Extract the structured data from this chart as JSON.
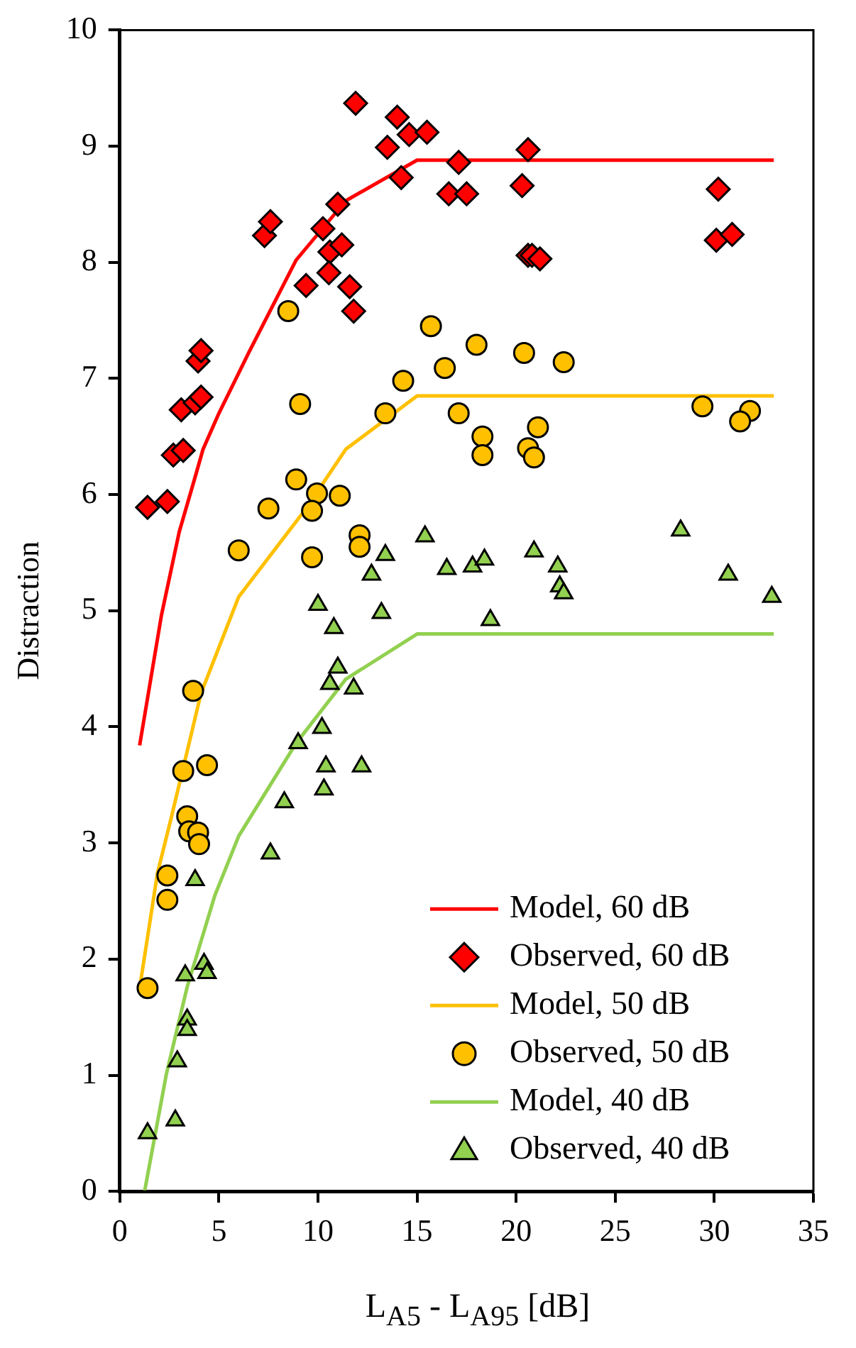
{
  "chart_data": {
    "type": "scatter",
    "xlabel": "L$_{A5}$ - L$_{A95}$ [dB]",
    "ylabel": "Distraction",
    "xlim": [
      0,
      35
    ],
    "ylim": [
      0,
      10
    ],
    "xticks": [
      0,
      5,
      10,
      15,
      20,
      25,
      30,
      35
    ],
    "yticks": [
      0,
      1,
      2,
      3,
      4,
      5,
      6,
      7,
      8,
      9,
      10
    ],
    "legend": "bottom right",
    "series": [
      {
        "type": "line",
        "name": "Model, 60 dB",
        "color": "#ff0000",
        "marker": "none",
        "x": [
          1.0,
          2.1,
          3.0,
          3.8,
          4.2,
          5.0,
          6.5,
          8.9,
          11.4,
          15.0,
          33.0
        ],
        "values": [
          3.84,
          4.96,
          5.68,
          6.15,
          6.39,
          6.7,
          7.22,
          8.02,
          8.53,
          8.88,
          8.88
        ]
      },
      {
        "type": "scatter",
        "name": "Observed, 60 dB",
        "color": "#ff0000",
        "marker": "diamond",
        "x": [
          1.4,
          2.4,
          2.7,
          3.1,
          3.2,
          3.8,
          4.1,
          3.95,
          4.1,
          7.3,
          7.6,
          9.4,
          10.25,
          10.6,
          11.2,
          10.55,
          11.0,
          11.6,
          11.8,
          11.9,
          13.5,
          14.0,
          14.2,
          14.6,
          15.5,
          17.1,
          16.6,
          17.5,
          20.6,
          20.3,
          20.6,
          20.8,
          21.2,
          30.2,
          30.1,
          30.9
        ],
        "values": [
          5.89,
          5.94,
          6.34,
          6.73,
          6.38,
          6.79,
          6.84,
          7.15,
          7.24,
          8.23,
          8.35,
          7.8,
          8.29,
          8.09,
          8.15,
          7.91,
          8.5,
          7.79,
          7.58,
          9.37,
          8.99,
          9.25,
          8.73,
          9.1,
          9.12,
          8.86,
          8.59,
          8.59,
          8.97,
          8.66,
          8.06,
          8.06,
          8.03,
          8.63,
          8.19,
          8.24
        ]
      },
      {
        "type": "line",
        "name": "Model, 50 dB",
        "color": "#ffc000",
        "marker": "none",
        "x": [
          1.0,
          1.9,
          2.6,
          4.1,
          6.0,
          9.4,
          11.4,
          15.0,
          33.0
        ],
        "values": [
          1.75,
          2.74,
          3.22,
          4.29,
          5.12,
          5.88,
          6.39,
          6.85,
          6.85
        ]
      },
      {
        "type": "scatter",
        "name": "Observed, 50 dB",
        "color": "#ffc000",
        "marker": "circle",
        "x": [
          8.5,
          15.7,
          16.4,
          14.3,
          9.1,
          13.4,
          17.1,
          18.0,
          20.4,
          22.4,
          18.3,
          18.3,
          21.1,
          20.6,
          20.9,
          29.4,
          31.8,
          31.3,
          8.9,
          9.95,
          11.1,
          7.5,
          9.7,
          12.1,
          12.1,
          6.0,
          9.7,
          3.7,
          3.2,
          4.4,
          3.4,
          3.5,
          3.95,
          4.0,
          2.4,
          2.4,
          1.4
        ],
        "values": [
          7.58,
          7.45,
          7.09,
          6.98,
          6.78,
          6.7,
          6.7,
          7.29,
          7.22,
          7.14,
          6.5,
          6.34,
          6.58,
          6.4,
          6.32,
          6.76,
          6.72,
          6.63,
          6.13,
          6.01,
          5.99,
          5.88,
          5.86,
          5.65,
          5.55,
          5.52,
          5.46,
          4.31,
          3.62,
          3.67,
          3.23,
          3.1,
          3.09,
          2.99,
          2.72,
          2.51,
          1.75
        ]
      },
      {
        "type": "line",
        "name": "Model, 40 dB",
        "color": "#92d050",
        "marker": "none",
        "x": [
          1.25,
          2.35,
          3.4,
          4.8,
          6.0,
          8.9,
          11.4,
          15.0,
          33.0
        ],
        "values": [
          0,
          1.01,
          1.76,
          2.55,
          3.06,
          3.86,
          4.41,
          4.8,
          4.8
        ]
      },
      {
        "type": "scatter",
        "name": "Observed, 40 dB",
        "color": "#92d050",
        "marker": "triangle",
        "x": [
          15.4,
          13.4,
          12.7,
          16.5,
          10.0,
          13.2,
          10.8,
          11.0,
          10.6,
          11.8,
          10.2,
          9.0,
          10.4,
          12.2,
          10.3,
          8.3,
          7.6,
          17.8,
          18.4,
          20.9,
          22.1,
          22.2,
          22.4,
          18.7,
          28.3,
          30.7,
          32.9,
          3.8,
          4.25,
          4.4,
          3.3,
          3.4,
          3.4,
          2.9,
          2.8,
          1.4
        ],
        "values": [
          5.64,
          5.48,
          5.31,
          5.36,
          5.05,
          4.98,
          4.85,
          4.51,
          4.37,
          4.33,
          3.99,
          3.86,
          3.66,
          3.66,
          3.46,
          3.35,
          2.91,
          5.38,
          5.44,
          5.51,
          5.38,
          5.21,
          5.15,
          4.92,
          5.69,
          5.31,
          5.12,
          2.68,
          1.96,
          1.88,
          1.86,
          1.48,
          1.39,
          1.12,
          0.61,
          0.5
        ]
      }
    ]
  }
}
